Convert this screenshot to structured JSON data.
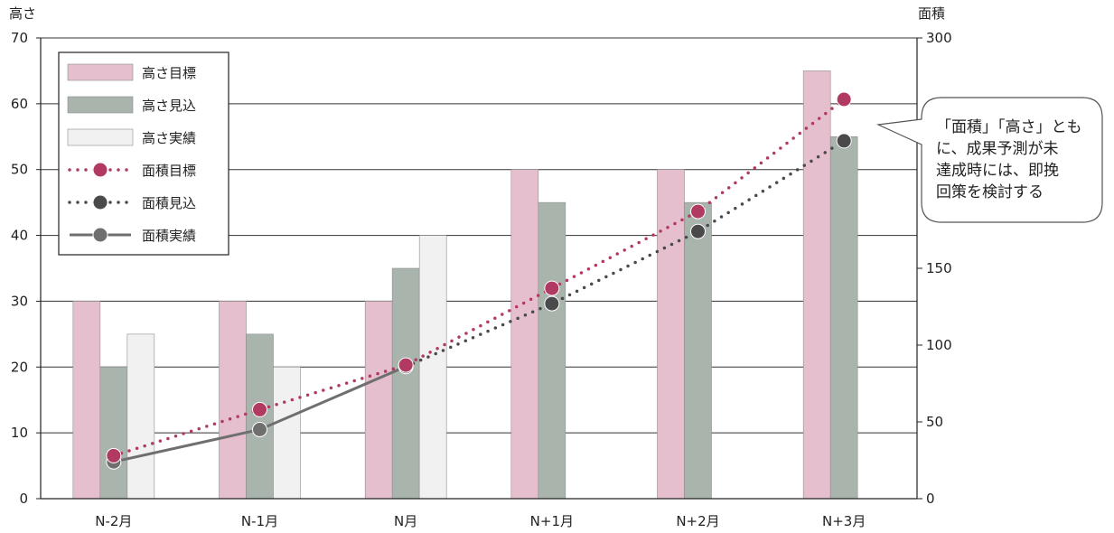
{
  "chart_data": {
    "type": "bar",
    "categories": [
      "N-2月",
      "N-1月",
      "N月",
      "N+1月",
      "N+2月",
      "N+3月"
    ],
    "left_axis": {
      "label": "高さ",
      "ylim": [
        0,
        70
      ],
      "ticks": [
        0,
        10,
        20,
        30,
        40,
        50,
        60,
        70
      ]
    },
    "right_axis": {
      "label": "面積",
      "ylim": [
        0,
        300
      ],
      "ticks": [
        0,
        50,
        100,
        150,
        300
      ]
    },
    "grid": true,
    "legend_position": "top-left",
    "series": [
      {
        "name": "高さ目標",
        "kind": "bar",
        "axis": "left",
        "color": "#e6bfcf",
        "values": [
          30,
          30,
          30,
          50,
          50,
          65
        ]
      },
      {
        "name": "高さ見込",
        "kind": "bar",
        "axis": "left",
        "color": "#a9b4ad",
        "values": [
          20,
          25,
          35,
          45,
          45,
          55
        ]
      },
      {
        "name": "高さ実績",
        "kind": "bar",
        "axis": "left",
        "color": "#f1f1f1",
        "values": [
          25,
          20,
          40,
          null,
          null,
          null
        ]
      },
      {
        "name": "面積目標",
        "kind": "line",
        "style": "dotted",
        "axis": "right",
        "color": "#b03a62",
        "values": [
          28,
          58,
          87,
          137,
          187,
          260
        ]
      },
      {
        "name": "面積見込",
        "kind": "line",
        "style": "dotted",
        "axis": "right",
        "color": "#4a4a4a",
        "values": [
          null,
          null,
          null,
          127,
          174,
          233
        ]
      },
      {
        "name": "面積実績",
        "kind": "line",
        "style": "solid",
        "axis": "right",
        "color": "#6f6f6f",
        "values": [
          24,
          45,
          86,
          null,
          null,
          null
        ]
      }
    ],
    "annotation": {
      "lines": [
        "「面積」「高さ」とも",
        "に、成果予測が未",
        "達成時には、即挽",
        "回策を検討する"
      ]
    }
  }
}
